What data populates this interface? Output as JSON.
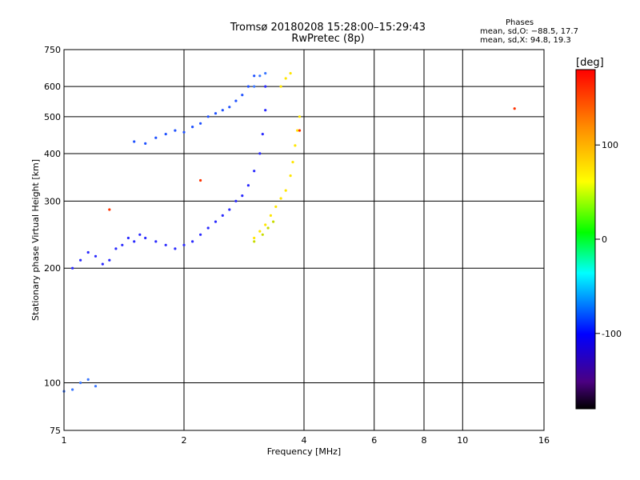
{
  "header": {
    "title_line1": "Tromsø 20180208 15:28:00–15:29:43",
    "title_line2": "RwPretec (8p)",
    "stats_heading": "Phases",
    "stats_o": "mean, sd,O: −88.5, 17.7",
    "stats_x": "mean, sd,X:  94.8, 19.3"
  },
  "chart_data": {
    "type": "scatter",
    "title": "Tromsø 20180208 15:28:00–15:29:43",
    "subtitle": "RwPretec (8p)",
    "xlabel": "Frequency [MHz]",
    "ylabel": "Stationary phase Virtual Height [km]",
    "xscale": "log",
    "yscale": "log",
    "xlim": [
      1,
      16
    ],
    "ylim": [
      75,
      750
    ],
    "x_ticks": [
      1,
      2,
      4,
      6,
      8,
      10,
      16
    ],
    "y_ticks": [
      75,
      100,
      200,
      300,
      400,
      500,
      600,
      750
    ],
    "grid": true,
    "colorbar": {
      "label": "[deg]",
      "range": [
        -180,
        180
      ],
      "ticks": [
        100,
        0,
        -100
      ],
      "colors": [
        "#000000",
        "#4b0082",
        "#0000ff",
        "#00ffff",
        "#00ff00",
        "#ffff00",
        "#ff8c00",
        "#ff0000"
      ]
    },
    "series": [
      {
        "color": "#2a2aff",
        "points": [
          [
            1.05,
            200
          ],
          [
            1.1,
            210
          ],
          [
            1.15,
            220
          ],
          [
            1.2,
            215
          ],
          [
            1.25,
            205
          ],
          [
            1.3,
            210
          ],
          [
            1.35,
            225
          ],
          [
            1.4,
            230
          ],
          [
            1.45,
            240
          ],
          [
            1.5,
            235
          ],
          [
            1.55,
            245
          ],
          [
            1.6,
            240
          ],
          [
            1.7,
            235
          ],
          [
            1.8,
            230
          ],
          [
            1.9,
            225
          ],
          [
            2.0,
            230
          ],
          [
            2.1,
            235
          ],
          [
            2.2,
            245
          ],
          [
            2.3,
            255
          ],
          [
            2.4,
            265
          ],
          [
            2.5,
            275
          ],
          [
            2.6,
            285
          ],
          [
            2.7,
            300
          ],
          [
            2.8,
            310
          ],
          [
            2.9,
            330
          ],
          [
            3.0,
            360
          ],
          [
            3.1,
            400
          ],
          [
            3.15,
            450
          ],
          [
            3.2,
            520
          ],
          [
            3.2,
            600
          ]
        ]
      },
      {
        "color": "#1e50ff",
        "points": [
          [
            1.5,
            430
          ],
          [
            1.6,
            425
          ],
          [
            1.7,
            440
          ],
          [
            1.8,
            450
          ],
          [
            1.9,
            460
          ],
          [
            2.0,
            455
          ],
          [
            2.1,
            470
          ],
          [
            2.2,
            480
          ],
          [
            2.3,
            500
          ],
          [
            2.4,
            510
          ],
          [
            2.5,
            520
          ],
          [
            2.6,
            530
          ],
          [
            2.7,
            550
          ],
          [
            2.8,
            570
          ],
          [
            2.9,
            600
          ],
          [
            3.0,
            640
          ]
        ]
      },
      {
        "color": "#3c78ff",
        "points": [
          [
            1.1,
            100
          ],
          [
            1.15,
            102
          ],
          [
            1.2,
            98
          ],
          [
            1.0,
            95
          ],
          [
            1.05,
            96
          ],
          [
            3.0,
            600
          ],
          [
            3.1,
            640
          ],
          [
            3.2,
            650
          ]
        ]
      },
      {
        "color": "#ffe600",
        "points": [
          [
            3.0,
            240
          ],
          [
            3.1,
            250
          ],
          [
            3.2,
            260
          ],
          [
            3.3,
            275
          ],
          [
            3.4,
            290
          ],
          [
            3.5,
            305
          ],
          [
            3.6,
            320
          ],
          [
            3.7,
            350
          ],
          [
            3.75,
            380
          ],
          [
            3.8,
            420
          ],
          [
            3.85,
            460
          ],
          [
            3.9,
            500
          ],
          [
            3.5,
            600
          ],
          [
            3.6,
            630
          ],
          [
            3.7,
            650
          ]
        ]
      },
      {
        "color": "#c8dc00",
        "points": [
          [
            3.0,
            235
          ],
          [
            3.15,
            245
          ],
          [
            3.25,
            255
          ],
          [
            3.35,
            265
          ]
        ]
      },
      {
        "color": "#ff3200",
        "points": [
          [
            2.2,
            340
          ],
          [
            1.3,
            285
          ],
          [
            3.9,
            460
          ],
          [
            13.5,
            525
          ]
        ]
      }
    ]
  }
}
